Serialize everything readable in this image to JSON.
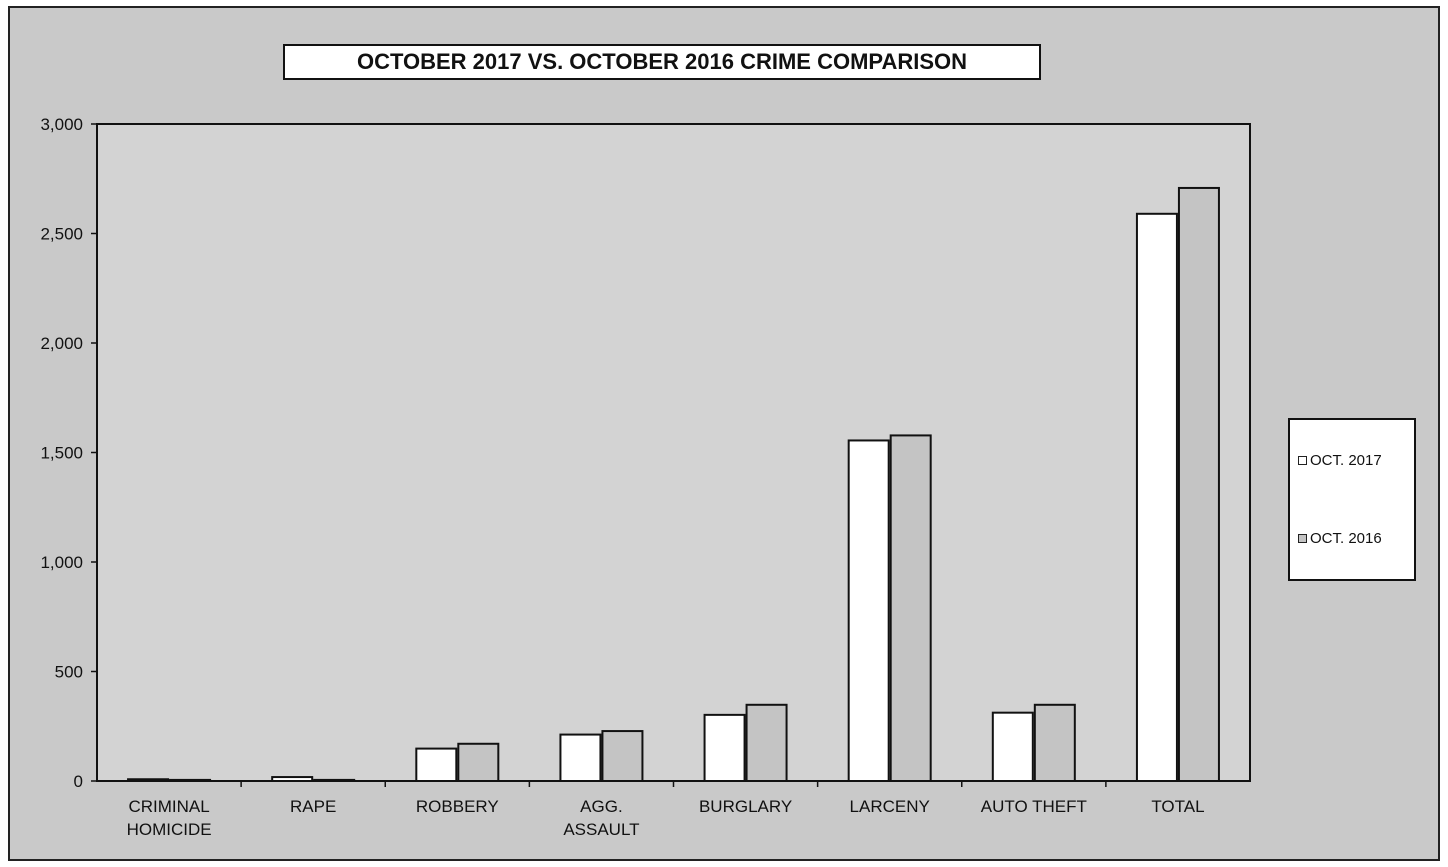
{
  "chart_data": {
    "type": "bar",
    "title": "OCTOBER 2017 VS. OCTOBER 2016 CRIME COMPARISON",
    "categories": [
      "CRIMINAL\nHOMICIDE",
      "RAPE",
      "ROBBERY",
      "AGG.\nASSAULT",
      "BURGLARY",
      "LARCENY",
      "AUTO THEFT",
      "TOTAL"
    ],
    "series": [
      {
        "name": "OCT. 2017",
        "values": [
          8,
          18,
          148,
          212,
          302,
          1555,
          312,
          2590
        ],
        "color": "#ffffff"
      },
      {
        "name": "OCT. 2016",
        "values": [
          5,
          5,
          170,
          228,
          348,
          1578,
          348,
          2708
        ],
        "color": "#c4c4c4"
      }
    ],
    "ylim": [
      0,
      3000
    ],
    "yticks": [
      0,
      500,
      1000,
      1500,
      2000,
      2500,
      3000
    ],
    "ytick_labels": [
      "0",
      "500",
      "1,000",
      "1,500",
      "2,000",
      "2,500",
      "3,000"
    ],
    "xlabel": "",
    "ylabel": "",
    "grid": false,
    "legend_position": "right"
  },
  "colors": {
    "frame_background": "#c9c9c9",
    "plot_background": "#d3d3d3"
  }
}
